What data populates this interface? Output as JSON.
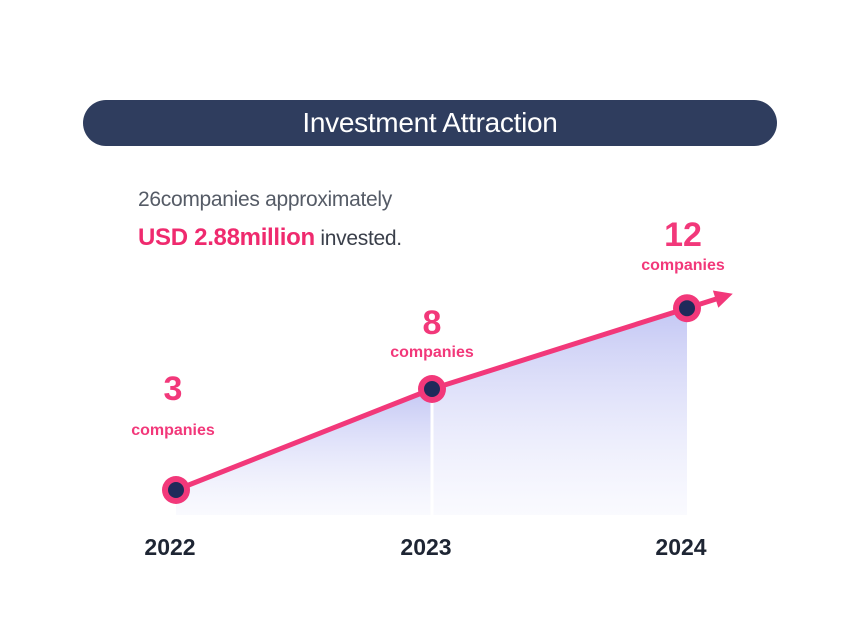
{
  "title": "Investment Attraction",
  "summary": {
    "line1": "26companies approximately",
    "amount": "USD 2.88million",
    "suffix": " invested."
  },
  "colors": {
    "accent": "#f2387a",
    "navy": "#2f3d5e",
    "area": "#c9ccf5",
    "marker_fill": "#1f2a5a"
  },
  "chart_data": {
    "type": "area",
    "categories": [
      "2022",
      "2023",
      "2024"
    ],
    "values": [
      3,
      8,
      12
    ],
    "unit_label": "companies",
    "series": [
      {
        "values": [
          3,
          8,
          12
        ]
      }
    ],
    "title": "",
    "xlabel": "",
    "ylabel": "",
    "grid": false
  }
}
